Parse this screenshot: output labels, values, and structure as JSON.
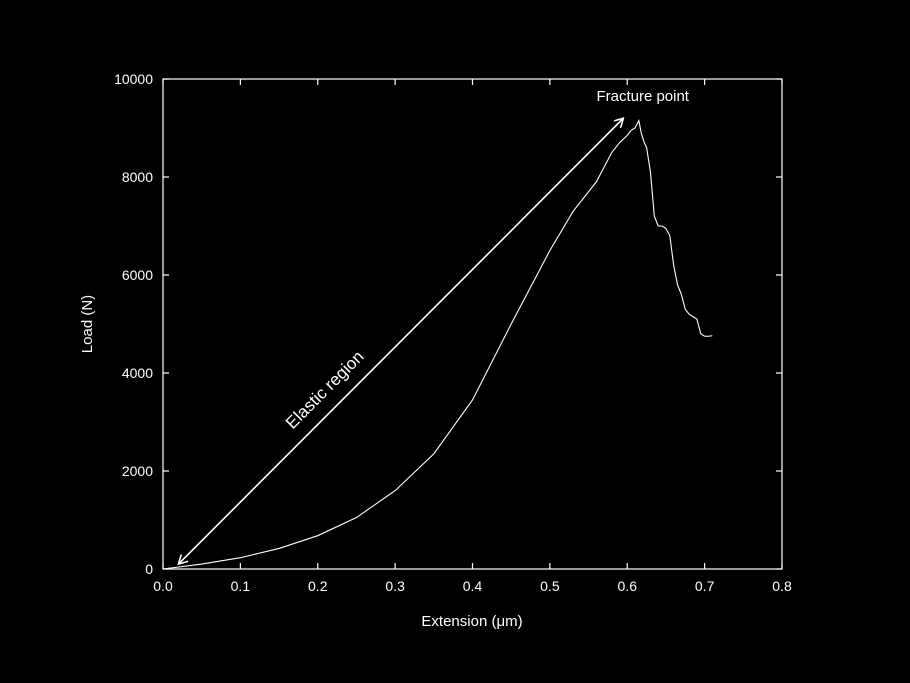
{
  "chart_data": {
    "type": "line",
    "xlabel": "Extension (μm)",
    "ylabel": "Load (N)",
    "xlim": [
      0.0,
      0.8
    ],
    "ylim": [
      0,
      10000
    ],
    "x_ticks": [
      "0.0",
      "0.1",
      "0.2",
      "0.3",
      "0.4",
      "0.5",
      "0.6",
      "0.7",
      "0.8"
    ],
    "y_ticks": [
      "0",
      "2000",
      "4000",
      "6000",
      "8000",
      "10000"
    ],
    "grid": false,
    "background_color": "#000000",
    "line_color": "#ffffff",
    "series": [
      {
        "x": [
          0.0,
          0.05,
          0.1,
          0.15,
          0.2,
          0.25,
          0.3,
          0.35,
          0.4,
          0.45,
          0.5,
          0.53,
          0.56,
          0.57,
          0.58,
          0.59,
          0.6,
          0.605,
          0.61,
          0.615,
          0.618,
          0.622,
          0.625,
          0.63,
          0.635,
          0.64,
          0.645,
          0.65,
          0.655,
          0.66,
          0.665,
          0.67,
          0.675,
          0.68,
          0.685,
          0.69,
          0.695,
          0.697,
          0.7,
          0.705,
          0.71
        ],
        "y": [
          0,
          100,
          230,
          420,
          680,
          1050,
          1600,
          2350,
          3450,
          5000,
          6500,
          7300,
          7900,
          8200,
          8500,
          8700,
          8850,
          8950,
          9000,
          9150,
          8900,
          8700,
          8600,
          8100,
          7200,
          7000,
          7000,
          6950,
          6800,
          6200,
          5800,
          5600,
          5300,
          5200,
          5150,
          5100,
          4800,
          4780,
          4750,
          4750,
          4760
        ]
      }
    ],
    "annotations": [
      {
        "type": "double-arrow",
        "label": "Elastic region",
        "from": [
          0.02,
          100
        ],
        "to": [
          0.595,
          9200
        ]
      },
      {
        "type": "text",
        "label": "Fracture point",
        "at": [
          0.62,
          9550
        ]
      }
    ]
  }
}
